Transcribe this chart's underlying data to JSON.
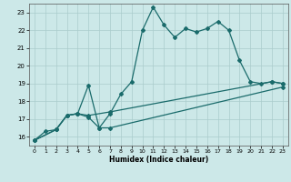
{
  "xlabel": "Humidex (Indice chaleur)",
  "bg_color": "#cce8e8",
  "grid_color": "#aacccc",
  "line_color": "#1a6b6b",
  "xlim": [
    -0.5,
    23.5
  ],
  "ylim": [
    15.5,
    23.5
  ],
  "xticks": [
    0,
    1,
    2,
    3,
    4,
    5,
    6,
    7,
    8,
    9,
    10,
    11,
    12,
    13,
    14,
    15,
    16,
    17,
    18,
    19,
    20,
    21,
    22,
    23
  ],
  "yticks": [
    16,
    17,
    18,
    19,
    20,
    21,
    22,
    23
  ],
  "line1_x": [
    0,
    1,
    2,
    3,
    4,
    5,
    6,
    7,
    8,
    9,
    10,
    11,
    12,
    13,
    14,
    15,
    16,
    17,
    18,
    19,
    20,
    21,
    22,
    23
  ],
  "line1_y": [
    15.8,
    16.3,
    16.4,
    17.2,
    17.3,
    18.9,
    16.5,
    17.3,
    18.4,
    19.1,
    22.0,
    23.3,
    22.3,
    21.6,
    22.1,
    21.9,
    22.1,
    22.5,
    22.0,
    20.3,
    19.1,
    19.0,
    19.1,
    19.0
  ],
  "line2_x": [
    0,
    2,
    3,
    4,
    5,
    7,
    22,
    23
  ],
  "line2_y": [
    15.8,
    16.4,
    17.2,
    17.3,
    17.2,
    17.4,
    19.1,
    19.0
  ],
  "line3_x": [
    0,
    2,
    3,
    4,
    5,
    6,
    7,
    23
  ],
  "line3_y": [
    15.8,
    16.4,
    17.2,
    17.3,
    17.1,
    16.5,
    16.5,
    18.8
  ]
}
